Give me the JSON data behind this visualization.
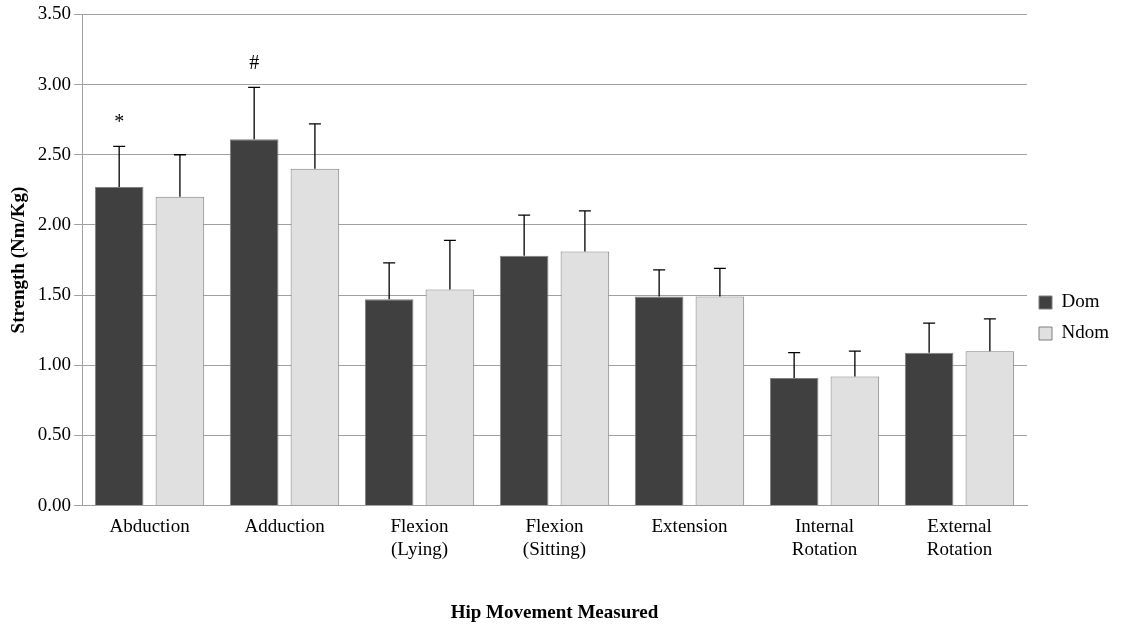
{
  "chart_data": {
    "type": "bar",
    "xlabel": "Hip Movement Measured",
    "ylabel": "Strength (Nm/Kg)",
    "categories": [
      "Abduction",
      "Adduction",
      "Flexion (Lying)",
      "Flexion (Sitting)",
      "Extension",
      "Internal Rotation",
      "External Rotation"
    ],
    "series": [
      {
        "name": "Dom",
        "color": "#404040",
        "values": [
          2.27,
          2.61,
          1.47,
          1.78,
          1.49,
          0.91,
          1.09
        ],
        "errors": [
          [
            2.27,
            2.56
          ],
          [
            2.61,
            2.98
          ],
          [
            1.47,
            1.73
          ],
          [
            1.78,
            2.07
          ],
          [
            1.49,
            1.68
          ],
          [
            0.91,
            1.09
          ],
          [
            1.09,
            1.3
          ]
        ]
      },
      {
        "name": "Ndom",
        "color": "#e0e0e0",
        "values": [
          2.2,
          2.4,
          1.54,
          1.81,
          1.49,
          0.92,
          1.1
        ],
        "errors": [
          [
            2.2,
            2.5
          ],
          [
            2.4,
            2.72
          ],
          [
            1.54,
            1.89
          ],
          [
            1.81,
            2.1
          ],
          [
            1.49,
            1.69
          ],
          [
            0.92,
            1.1
          ],
          [
            1.1,
            1.33
          ]
        ]
      }
    ],
    "ylim": [
      0,
      3.5
    ],
    "yticks": [
      {
        "value": 0,
        "label": "0.00"
      },
      {
        "value": 0.5,
        "label": "0.50"
      },
      {
        "value": 1,
        "label": "1.00"
      },
      {
        "value": 1.5,
        "label": "1.50"
      },
      {
        "value": 2,
        "label": "2.00"
      },
      {
        "value": 2.5,
        "label": "2.50"
      },
      {
        "value": 3,
        "label": "3.00"
      },
      {
        "value": 3.5,
        "label": "3.50"
      }
    ],
    "grid": "y",
    "legend": "right",
    "annotations": [
      "*",
      "#"
    ]
  }
}
